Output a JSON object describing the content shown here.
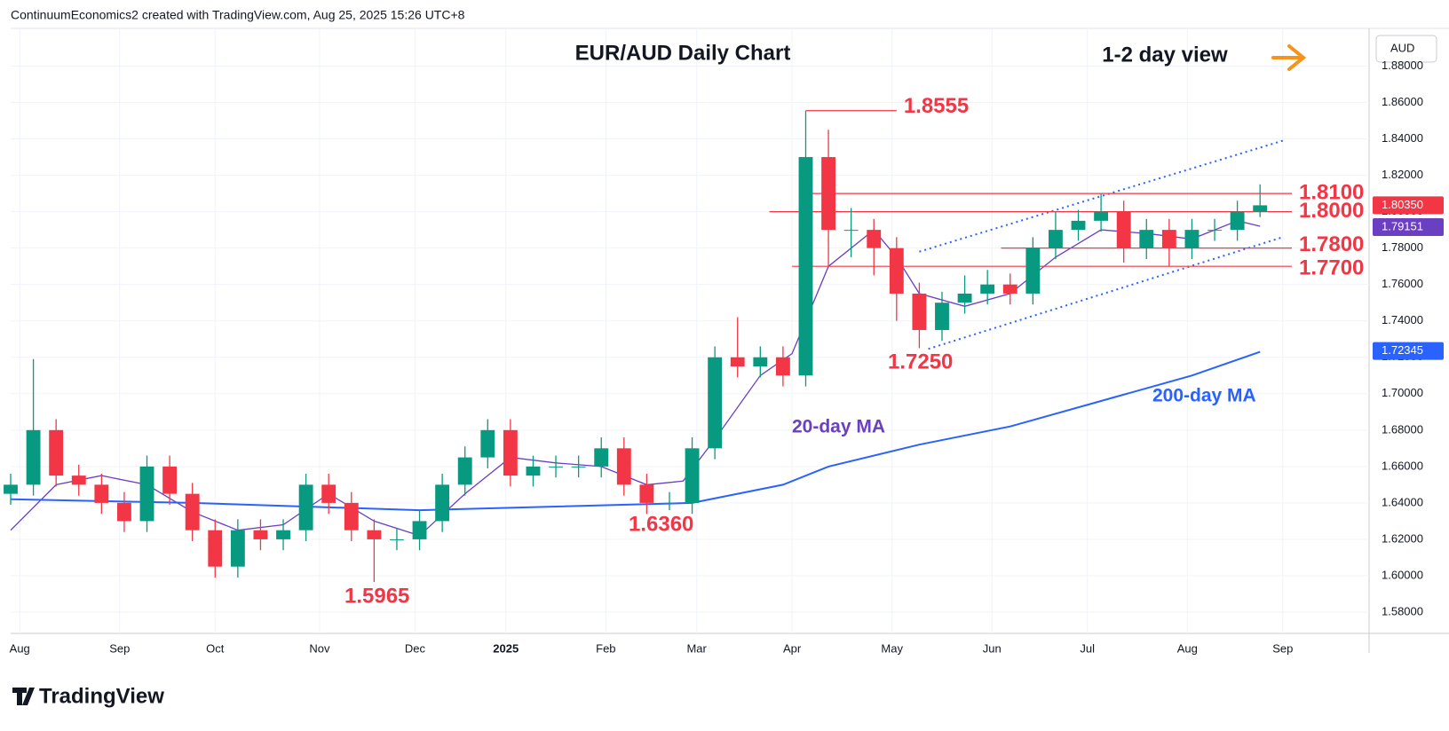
{
  "header": "ContinuumEconomics2 created with TradingView.com, Aug 25, 2025 15:26 UTC+8",
  "brand": "TradingView",
  "chart_data": {
    "type": "candlestick",
    "title": "EUR/AUD Daily Chart",
    "subtitle": "1-2 day view",
    "currency": "AUD",
    "up_color": "#089981",
    "down_color": "#f23645",
    "x": [
      0,
      5,
      10,
      15,
      20,
      25,
      30,
      35,
      40,
      45,
      50,
      55,
      60,
      65,
      70,
      75,
      80,
      85,
      90,
      95,
      100,
      105,
      110,
      115,
      120,
      125,
      130,
      135,
      140,
      145,
      150,
      155,
      160,
      165,
      170,
      175,
      180,
      185,
      190,
      195,
      200,
      205,
      210,
      215,
      220,
      225,
      230,
      235,
      240,
      245,
      250,
      255,
      260,
      265,
      270,
      275
    ],
    "open": [
      1.645,
      1.65,
      1.68,
      1.655,
      1.65,
      1.64,
      1.63,
      1.66,
      1.645,
      1.625,
      1.605,
      1.625,
      1.62,
      1.625,
      1.65,
      1.64,
      1.625,
      1.62,
      1.62,
      1.63,
      1.65,
      1.665,
      1.68,
      1.655,
      1.66,
      1.66,
      1.66,
      1.67,
      1.65,
      1.64,
      1.64,
      1.67,
      1.72,
      1.715,
      1.72,
      1.71,
      1.83,
      1.79,
      1.79,
      1.78,
      1.755,
      1.735,
      1.75,
      1.755,
      1.76,
      1.755,
      1.78,
      1.79,
      1.795,
      1.8,
      1.78,
      1.79,
      1.78,
      1.79,
      1.79,
      1.8
    ],
    "high": [
      1.656,
      1.719,
      1.686,
      1.661,
      1.656,
      1.646,
      1.666,
      1.666,
      1.651,
      1.631,
      1.631,
      1.631,
      1.631,
      1.656,
      1.656,
      1.646,
      1.631,
      1.626,
      1.636,
      1.656,
      1.671,
      1.686,
      1.686,
      1.666,
      1.666,
      1.666,
      1.676,
      1.676,
      1.656,
      1.646,
      1.676,
      1.726,
      1.742,
      1.726,
      1.726,
      1.8555,
      1.845,
      1.802,
      1.796,
      1.786,
      1.761,
      1.756,
      1.765,
      1.768,
      1.766,
      1.786,
      1.8,
      1.801,
      1.81,
      1.806,
      1.796,
      1.796,
      1.796,
      1.796,
      1.806,
      1.815
    ],
    "low": [
      1.639,
      1.644,
      1.649,
      1.644,
      1.634,
      1.624,
      1.624,
      1.639,
      1.619,
      1.599,
      1.599,
      1.614,
      1.614,
      1.619,
      1.634,
      1.619,
      1.5965,
      1.614,
      1.614,
      1.624,
      1.644,
      1.659,
      1.649,
      1.649,
      1.654,
      1.654,
      1.654,
      1.644,
      1.634,
      1.636,
      1.634,
      1.664,
      1.709,
      1.709,
      1.704,
      1.704,
      1.77,
      1.775,
      1.765,
      1.74,
      1.725,
      1.729,
      1.744,
      1.749,
      1.749,
      1.749,
      1.774,
      1.784,
      1.789,
      1.772,
      1.774,
      1.77,
      1.774,
      1.784,
      1.784,
      1.797
    ],
    "close": [
      1.65,
      1.68,
      1.655,
      1.65,
      1.64,
      1.63,
      1.66,
      1.645,
      1.625,
      1.605,
      1.625,
      1.62,
      1.625,
      1.65,
      1.64,
      1.625,
      1.62,
      1.62,
      1.63,
      1.65,
      1.665,
      1.68,
      1.655,
      1.66,
      1.66,
      1.66,
      1.67,
      1.65,
      1.64,
      1.64,
      1.67,
      1.72,
      1.715,
      1.72,
      1.71,
      1.83,
      1.79,
      1.79,
      1.78,
      1.755,
      1.735,
      1.75,
      1.755,
      1.76,
      1.755,
      1.78,
      1.79,
      1.795,
      1.8,
      1.78,
      1.79,
      1.78,
      1.79,
      1.79,
      1.8,
      1.8035
    ],
    "series": [
      {
        "name": "20-day MA",
        "color": "#6a3fc2",
        "x": [
          0,
          10,
          20,
          30,
          40,
          50,
          60,
          70,
          80,
          90,
          100,
          110,
          120,
          130,
          140,
          148,
          155,
          165,
          172,
          180,
          190,
          195,
          200,
          210,
          220,
          230,
          240,
          250,
          260,
          270,
          275
        ],
        "values": [
          1.625,
          1.65,
          1.655,
          1.65,
          1.635,
          1.625,
          1.628,
          1.645,
          1.63,
          1.622,
          1.645,
          1.665,
          1.662,
          1.66,
          1.65,
          1.652,
          1.675,
          1.71,
          1.722,
          1.77,
          1.79,
          1.775,
          1.755,
          1.748,
          1.755,
          1.775,
          1.79,
          1.788,
          1.785,
          1.795,
          1.792
        ]
      },
      {
        "name": "200-day MA",
        "color": "#2962ff",
        "x": [
          0,
          40,
          90,
          150,
          170,
          180,
          200,
          220,
          240,
          260,
          275
        ],
        "values": [
          1.642,
          1.64,
          1.636,
          1.64,
          1.65,
          1.66,
          1.672,
          1.682,
          1.696,
          1.71,
          1.723
        ]
      }
    ],
    "levels": [
      {
        "value": 1.8555,
        "label": "1.8555",
        "x": [
          175,
          195
        ]
      },
      {
        "value": 1.81,
        "label": "1.8100",
        "x": [
          175,
          282
        ]
      },
      {
        "value": 1.8,
        "label": "1.8000",
        "x": [
          167,
          282
        ]
      },
      {
        "value": 1.78,
        "label": "1.7800",
        "x": [
          218,
          282
        ]
      },
      {
        "value": 1.77,
        "label": "1.7700",
        "x": [
          172,
          282
        ]
      }
    ],
    "annotations": [
      {
        "value": 1.725,
        "label": "1.7250"
      },
      {
        "value": 1.636,
        "label": "1.6360"
      },
      {
        "value": 1.5965,
        "label": "1.5965"
      }
    ],
    "trendlines": [
      {
        "x": [
          200,
          280
        ],
        "values": [
          1.778,
          1.839
        ]
      },
      {
        "x": [
          202,
          280
        ],
        "values": [
          1.7246,
          1.786
        ]
      }
    ],
    "price_labels": [
      {
        "value": 1.8035,
        "label": "1.80350",
        "color": "#f23645"
      },
      {
        "value": 1.79151,
        "label": "1.79151",
        "color": "#6a3fc2"
      },
      {
        "value": 1.72345,
        "label": "1.72345",
        "color": "#2962ff"
      }
    ],
    "xlim": [
      0,
      299
    ],
    "ylim": [
      1.5683,
      1.9007
    ],
    "xticks": [
      {
        "value": 2,
        "label": "Aug"
      },
      {
        "value": 24,
        "label": "Sep"
      },
      {
        "value": 45,
        "label": "Oct"
      },
      {
        "value": 68,
        "label": "Nov"
      },
      {
        "value": 89,
        "label": "Dec"
      },
      {
        "value": 109,
        "label": "2025"
      },
      {
        "value": 131,
        "label": "Feb"
      },
      {
        "value": 151,
        "label": "Mar"
      },
      {
        "value": 172,
        "label": "Apr"
      },
      {
        "value": 194,
        "label": "May"
      },
      {
        "value": 216,
        "label": "Jun"
      },
      {
        "value": 237,
        "label": "Jul"
      },
      {
        "value": 259,
        "label": "Aug"
      },
      {
        "value": 280,
        "label": "Sep"
      }
    ],
    "yticks": [
      {
        "value": 1.58,
        "label": "1.58000"
      },
      {
        "value": 1.6,
        "label": "1.60000"
      },
      {
        "value": 1.62,
        "label": "1.62000"
      },
      {
        "value": 1.64,
        "label": "1.64000"
      },
      {
        "value": 1.66,
        "label": "1.66000"
      },
      {
        "value": 1.68,
        "label": "1.68000"
      },
      {
        "value": 1.7,
        "label": "1.70000"
      },
      {
        "value": 1.72,
        "label": "1.72000"
      },
      {
        "value": 1.74,
        "label": "1.74000"
      },
      {
        "value": 1.76,
        "label": "1.76000"
      },
      {
        "value": 1.78,
        "label": "1.78000"
      },
      {
        "value": 1.8,
        "label": "1.80000"
      },
      {
        "value": 1.82,
        "label": "1.82000"
      },
      {
        "value": 1.84,
        "label": "1.84000"
      },
      {
        "value": 1.86,
        "label": "1.86000"
      },
      {
        "value": 1.88,
        "label": "1.88000"
      }
    ],
    "grid": true
  }
}
